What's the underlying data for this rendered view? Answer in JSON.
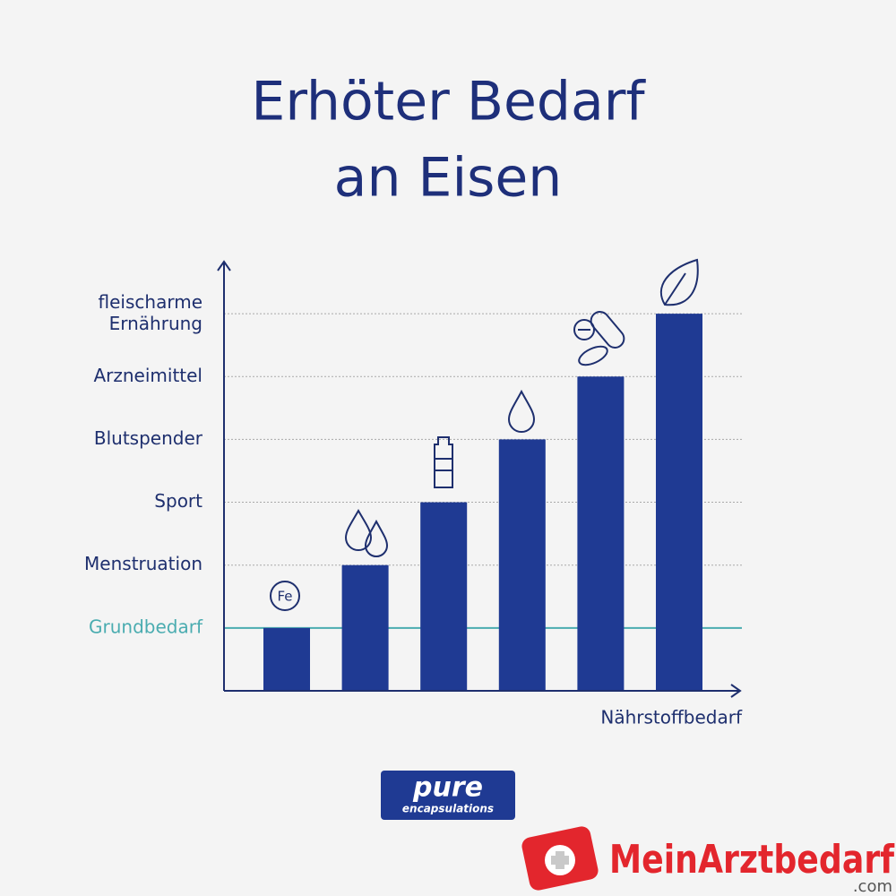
{
  "chart_data": {
    "type": "bar",
    "title_lines": [
      "Erhöter Bedarf",
      "an Eisen"
    ],
    "x_label": "Nährstoffbedarf",
    "values": [
      1,
      2,
      3,
      4,
      5,
      6
    ],
    "color": "#1f3a93",
    "ylim": [
      0,
      6.8
    ],
    "yticks": [
      {
        "value": 1,
        "label": "Grundbedarf",
        "color": "#4aacb0"
      },
      {
        "value": 2,
        "label": "Menstruation"
      },
      {
        "value": 3,
        "label": "Sport"
      },
      {
        "value": 4,
        "label": "Blutspender"
      },
      {
        "value": 5,
        "label": "Arzneimittel"
      },
      {
        "value": 6,
        "label": "fleischarme\nErnährung"
      }
    ],
    "grid": true
  },
  "icons": {
    "iron": "Fe"
  },
  "logo": {
    "brand": "pure",
    "sub": "encapsulations"
  },
  "watermark": {
    "name": "MeinArztbedarf",
    "tld": ".com"
  }
}
